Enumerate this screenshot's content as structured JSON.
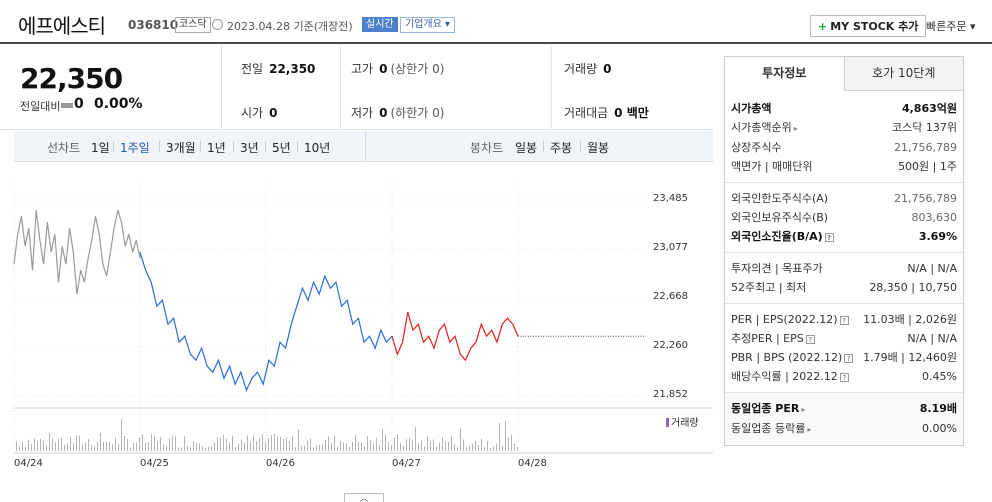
{
  "header": {
    "name": "에프에스티",
    "code": "036810",
    "market": "코스닥",
    "date": "2023.04.28 기준(개장전)",
    "realtime": "실시간",
    "overview": "기업개요",
    "mystock": "MY STOCK 추가",
    "quick_order": "빠른주문"
  },
  "price": {
    "current": "22,350",
    "change_label": "전일대비",
    "change_value": "0",
    "change_pct": "0.00%"
  },
  "stats": {
    "prev_label": "전일",
    "prev_value": "22,350",
    "high_label": "고가",
    "high_value": "0",
    "high_sub": "(상한가 0)",
    "volume_label": "거래량",
    "volume_value": "0",
    "open_label": "시가",
    "open_value": "0",
    "low_label": "저가",
    "low_value": "0",
    "low_sub": "(하한가 0)",
    "amount_label": "거래대금",
    "amount_value": "0 백만"
  },
  "period": {
    "line_label": "선차트",
    "line_opts": [
      "1일",
      "1주일",
      "3개월",
      "1년",
      "3년",
      "5년",
      "10년"
    ],
    "active": "1주일",
    "candle_label": "봉차트",
    "candle_opts": [
      "일봉",
      "주봉",
      "월봉"
    ]
  },
  "chart_data": {
    "type": "line",
    "y_ticks": [
      "23,485",
      "23,077",
      "22,668",
      "22,260",
      "21,852"
    ],
    "ylim": [
      21852,
      23485
    ],
    "x_ticks": [
      "04/24",
      "04/25",
      "04/26",
      "04/27",
      "04/28"
    ],
    "reference_price": 22350,
    "volume_legend": "거래량",
    "series": [
      {
        "color": "#999999",
        "values": [
          22950,
          23200,
          23350,
          23100,
          23250,
          22900,
          23400,
          23150,
          22950,
          23300,
          23050,
          23200,
          22800,
          23100,
          22950,
          23250,
          23050,
          22700,
          22900,
          22800,
          23000,
          23150,
          23350,
          23200,
          22950,
          22850,
          23050,
          23250,
          23400,
          23300,
          23100,
          23200,
          23050,
          23150,
          23000
        ]
      },
      {
        "color": "#2a6dd6",
        "values": [
          23050,
          22900,
          22800,
          22600,
          22650,
          22450,
          22500,
          22300,
          22350,
          22200,
          22150,
          22250,
          22100,
          22050,
          22150,
          22000,
          22100,
          21950,
          22050,
          21900,
          22000,
          22050,
          21950,
          22150,
          22100,
          22300,
          22250,
          22450,
          22600,
          22750,
          22650,
          22800,
          22700,
          22850,
          22750,
          22800,
          22600,
          22650,
          22450,
          22500,
          22300,
          22350,
          22250,
          22400,
          22300,
          22350
        ]
      },
      {
        "color": "#e0201e",
        "values": [
          22350,
          22200,
          22300,
          22550,
          22400,
          22450,
          22300,
          22350,
          22250,
          22400,
          22450,
          22300,
          22350,
          22200,
          22150,
          22250,
          22300,
          22450,
          22350,
          22400,
          22300,
          22450,
          22500,
          22450,
          22350
        ]
      }
    ]
  },
  "panel": {
    "tabs": [
      "투자정보",
      "호가 10단계"
    ],
    "market_cap_label": "시가총액",
    "market_cap": "4,863억원",
    "cap_rank_label": "시가총액순위",
    "cap_rank": "코스닥 137위",
    "shares_label": "상장주식수",
    "shares": "21,756,789",
    "par_label": "액면가 | 매매단위",
    "par": "500원 | 1주",
    "foreign_limit_label": "외국인한도주식수(A)",
    "foreign_limit": "21,756,789",
    "foreign_hold_label": "외국인보유주식수(B)",
    "foreign_hold": "803,630",
    "foreign_ratio_label": "외국인소진율(B/A)",
    "foreign_ratio": "3.69%",
    "opinion_label": "투자의견 | 목표주가",
    "opinion": "N/A | N/A",
    "week52_label": "52주최고 | 최저",
    "week52": "28,350 | 10,750",
    "per_label": "PER | EPS(2022.12)",
    "per": "11.03배 | 2,026원",
    "est_per_label": "추정PER | EPS",
    "est_per": "N/A | N/A",
    "pbr_label": "PBR | BPS (2022.12)",
    "pbr": "1.79배 | 12,460원",
    "div_label": "배당수익률 | 2022.12",
    "div": "0.45%",
    "sector_per_label": "동일업종 PER",
    "sector_per": "8.19배",
    "sector_rate_label": "동일업종 등락률",
    "sector_rate": "0.00%"
  }
}
